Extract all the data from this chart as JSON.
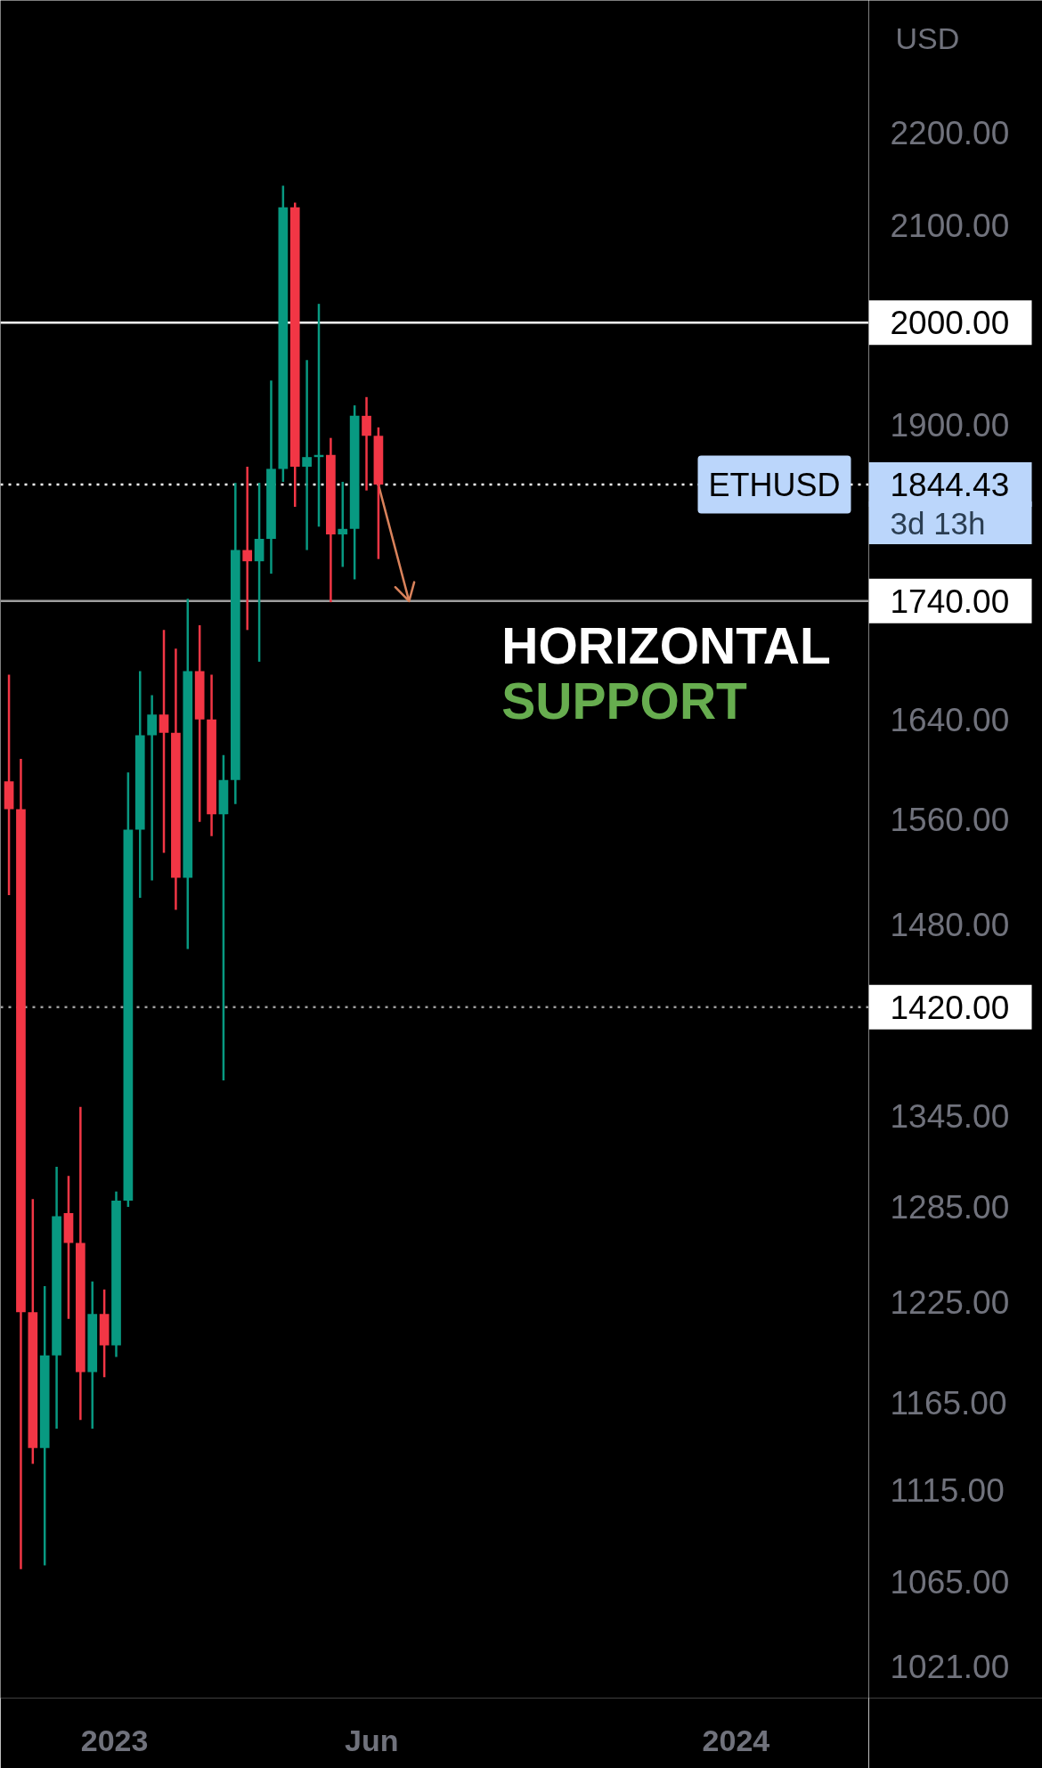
{
  "chart_data": {
    "type": "candlestick",
    "title": "ETHUSD",
    "x": [
      "2022-10-31",
      "2022-11-07",
      "2022-11-14",
      "2022-11-21",
      "2022-11-28",
      "2022-12-05",
      "2022-12-12",
      "2022-12-19",
      "2022-12-26",
      "2023-01-02",
      "2023-01-09",
      "2023-01-16",
      "2023-01-23",
      "2023-01-30",
      "2023-02-06",
      "2023-02-13",
      "2023-02-20",
      "2023-02-27",
      "2023-03-06",
      "2023-03-13",
      "2023-03-20",
      "2023-03-27",
      "2023-04-03",
      "2023-04-10",
      "2023-04-17",
      "2023-04-24",
      "2023-05-01",
      "2023-05-08",
      "2023-05-15",
      "2023-05-22",
      "2023-05-29",
      "2023-06-05"
    ],
    "ohlc": [
      [
        1590,
        1677,
        1502,
        1568
      ],
      [
        1568,
        1608,
        1072,
        1219
      ],
      [
        1219,
        1290,
        1130,
        1139
      ],
      [
        1139,
        1235,
        1074,
        1193
      ],
      [
        1193,
        1311,
        1150,
        1279
      ],
      [
        1281,
        1305,
        1215,
        1262
      ],
      [
        1262,
        1351,
        1155,
        1183
      ],
      [
        1183,
        1238,
        1150,
        1218
      ],
      [
        1218,
        1233,
        1180,
        1199
      ],
      [
        1199,
        1295,
        1192,
        1289
      ],
      [
        1289,
        1597,
        1285,
        1552
      ],
      [
        1552,
        1680,
        1500,
        1627
      ],
      [
        1627,
        1660,
        1513,
        1644
      ],
      [
        1644,
        1715,
        1534,
        1629
      ],
      [
        1629,
        1699,
        1491,
        1515
      ],
      [
        1515,
        1742,
        1462,
        1680
      ],
      [
        1680,
        1719,
        1558,
        1640
      ],
      [
        1640,
        1677,
        1547,
        1564
      ],
      [
        1564,
        1611,
        1369,
        1591
      ],
      [
        1591,
        1846,
        1572,
        1785
      ],
      [
        1785,
        1861,
        1715,
        1775
      ],
      [
        1775,
        1846,
        1688,
        1795
      ],
      [
        1795,
        1943,
        1764,
        1859
      ],
      [
        1859,
        2142,
        1847,
        2119
      ],
      [
        2119,
        2124,
        1824,
        1861
      ],
      [
        1861,
        1963,
        1785,
        1870
      ],
      [
        1870,
        2019,
        1806,
        1872
      ],
      [
        1872,
        1888,
        1739,
        1799
      ],
      [
        1799,
        1847,
        1770,
        1804
      ],
      [
        1804,
        1919,
        1759,
        1909
      ],
      [
        1909,
        1927,
        1839,
        1890
      ],
      [
        1890,
        1898,
        1777,
        1844.43
      ]
    ],
    "colors": [
      "#f23645",
      "#f23645",
      "#f23645",
      "#089981",
      "#089981",
      "#f23645",
      "#f23645",
      "#089981",
      "#f23645",
      "#089981",
      "#089981",
      "#089981",
      "#089981",
      "#f23645",
      "#f23645",
      "#089981",
      "#f23645",
      "#f23645",
      "#089981",
      "#089981",
      "#f23645",
      "#089981",
      "#089981",
      "#089981",
      "#f23645",
      "#089981",
      "#089981",
      "#f23645",
      "#089981",
      "#089981",
      "#f23645",
      "#f23645"
    ],
    "series": [
      {
        "type": "line",
        "x": [
          "2023-06-05",
          "2023-06-23"
        ],
        "values": [
          1844.43,
          1740
        ],
        "color": "#d9825b"
      }
    ],
    "ylabel": "USD",
    "log": true,
    "xlim": [
      "2022-10-26",
      "2024-03-19"
    ],
    "xticks": [
      {
        "value": "2023-01-01",
        "label": "2023"
      },
      {
        "value": "2023-06-01",
        "label": "Jun"
      },
      {
        "value": "2024-01-01",
        "label": "2024"
      }
    ],
    "ylim": [
      1005,
      2350
    ],
    "yticks": [
      {
        "value": 2200,
        "label": "2200.00"
      },
      {
        "value": 2100,
        "label": "2100.00"
      },
      {
        "value": 1900,
        "label": "1900.00"
      },
      {
        "value": 1640,
        "label": "1640.00"
      },
      {
        "value": 1560,
        "label": "1560.00"
      },
      {
        "value": 1480,
        "label": "1480.00"
      },
      {
        "value": 1345,
        "label": "1345.00"
      },
      {
        "value": 1285,
        "label": "1285.00"
      },
      {
        "value": 1225,
        "label": "1225.00"
      },
      {
        "value": 1165,
        "label": "1165.00"
      },
      {
        "value": 1115,
        "label": "1115.00"
      },
      {
        "value": 1065,
        "label": "1065.00"
      },
      {
        "value": 1021,
        "label": "1021.00"
      }
    ],
    "ref_lines": [
      {
        "axis": "y",
        "value": 2000,
        "label": "2000.00",
        "color": "#ffffff",
        "line_style": "solid"
      },
      {
        "axis": "y",
        "value": 1844.43,
        "label": "1844.43",
        "color": "#ffffff",
        "line_style": "dotted"
      },
      {
        "axis": "y",
        "value": 1740,
        "label": "1740.00",
        "color": "#9e9e9e",
        "line_style": "solid"
      },
      {
        "axis": "y",
        "value": 1420,
        "label": "1420.00",
        "color": "#9e9e9e",
        "line_style": "dotted"
      }
    ],
    "annotations": [
      {
        "text": "HORIZONTAL\nSUPPORT",
        "x": "2023-06-23",
        "y": 1740
      },
      "3d 13h"
    ]
  }
}
